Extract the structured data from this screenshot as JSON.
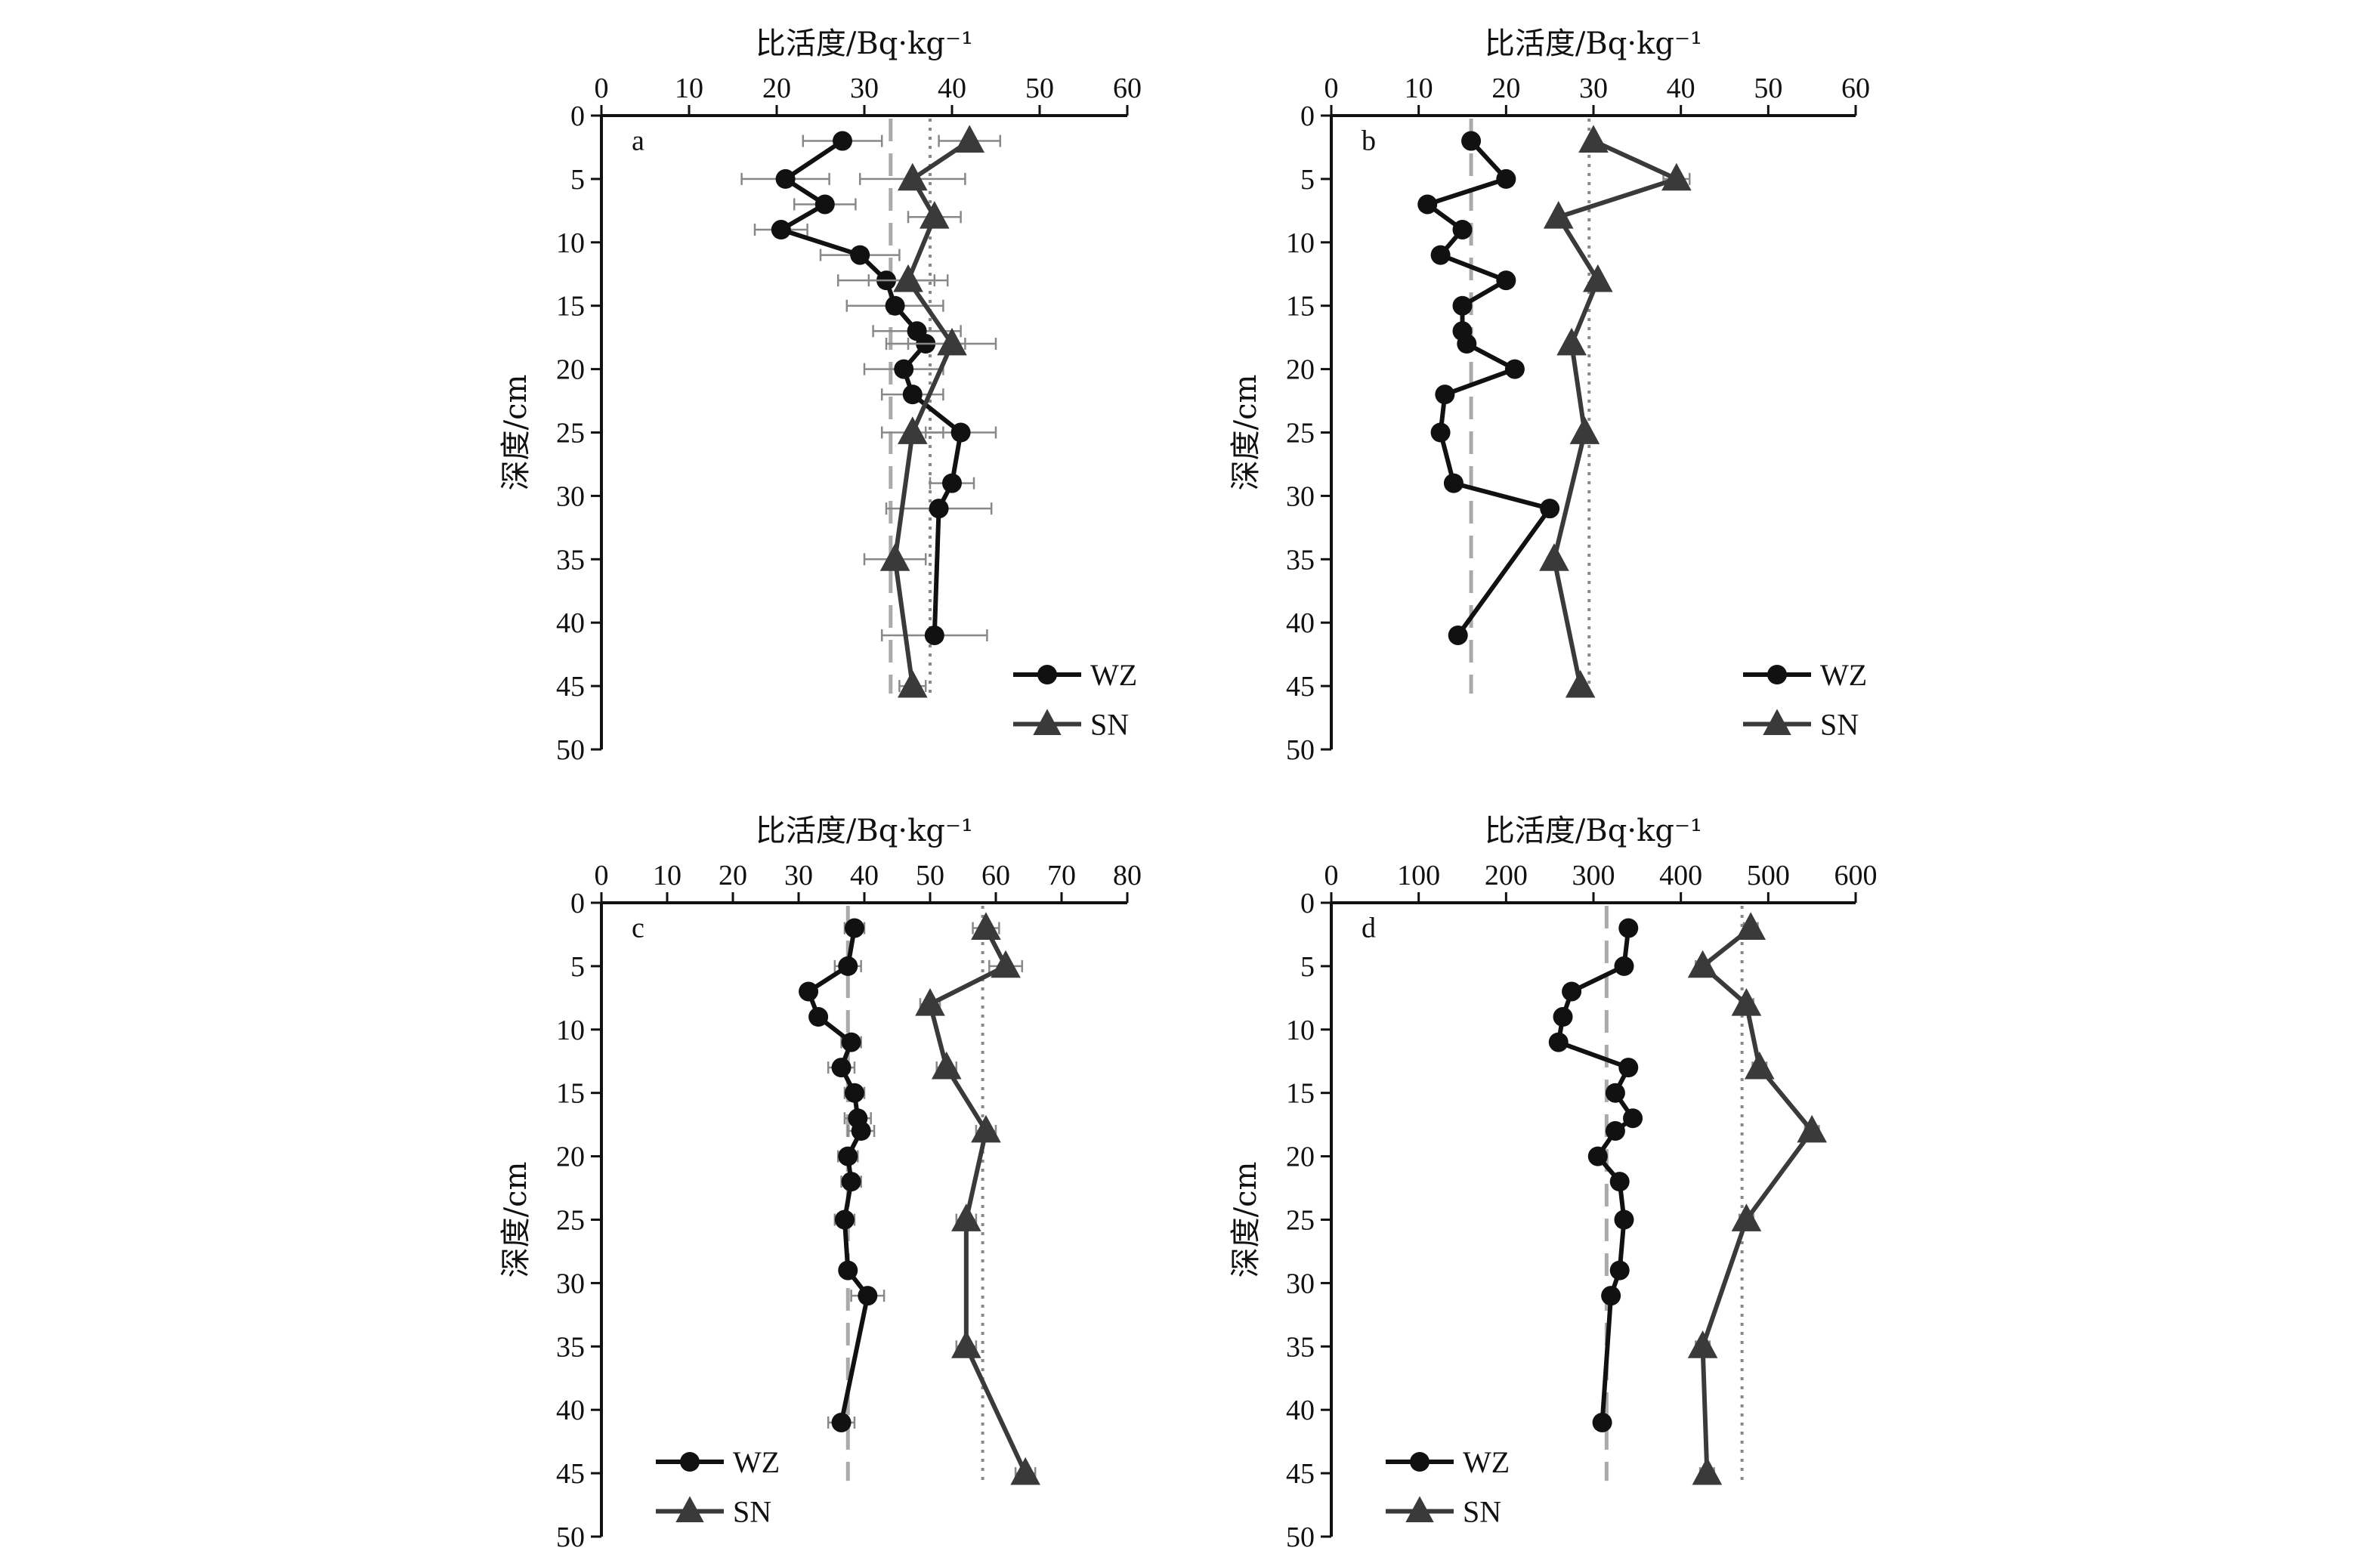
{
  "chart_data": [
    {
      "type": "line",
      "panel_label": "a",
      "xlabel": "比活度/Bq·kg⁻¹",
      "ylabel": "深度/cm",
      "xlim": [
        0,
        60
      ],
      "xticks": [
        0,
        10,
        20,
        30,
        40,
        50,
        60
      ],
      "ylim": [
        0,
        50
      ],
      "yticks": [
        0,
        5,
        10,
        15,
        20,
        25,
        30,
        35,
        40,
        45,
        50
      ],
      "grid": false,
      "legend_position": "bottom-right",
      "reference_lines": [
        {
          "series": "WZ",
          "value": 33,
          "style": "dashed"
        },
        {
          "series": "SN",
          "value": 37.5,
          "style": "dotted"
        }
      ],
      "series": [
        {
          "name": "WZ",
          "marker": "circle",
          "x": [
            27.5,
            21,
            25.5,
            20.5,
            29.5,
            32.5,
            33.5,
            36,
            37,
            34.5,
            35.5,
            41,
            40,
            38.5,
            38
          ],
          "y": [
            2,
            5,
            7,
            9,
            11,
            13,
            15,
            17,
            18,
            20,
            22,
            25,
            29,
            31,
            41
          ],
          "err": [
            4.5,
            5,
            3.5,
            3,
            4.5,
            5.5,
            5.5,
            5,
            4.5,
            4.5,
            3.5,
            4,
            2.5,
            6,
            6
          ]
        },
        {
          "name": "SN",
          "marker": "triangle",
          "x": [
            42,
            35.5,
            38,
            35,
            40,
            35.5,
            33.5,
            35.5
          ],
          "y": [
            2,
            5,
            8,
            13,
            18,
            25,
            35,
            45
          ],
          "err": [
            3.5,
            6,
            3,
            4.5,
            5,
            3.5,
            3.5,
            1.5
          ]
        }
      ]
    },
    {
      "type": "line",
      "panel_label": "b",
      "xlabel": "比活度/Bq·kg⁻¹",
      "ylabel": "深度/cm",
      "xlim": [
        0,
        60
      ],
      "xticks": [
        0,
        10,
        20,
        30,
        40,
        50,
        60
      ],
      "ylim": [
        0,
        50
      ],
      "yticks": [
        0,
        5,
        10,
        15,
        20,
        25,
        30,
        35,
        40,
        45,
        50
      ],
      "grid": false,
      "legend_position": "bottom-right",
      "reference_lines": [
        {
          "series": "WZ",
          "value": 16,
          "style": "dashed"
        },
        {
          "series": "SN",
          "value": 29.5,
          "style": "dotted"
        }
      ],
      "series": [
        {
          "name": "WZ",
          "marker": "circle",
          "x": [
            16,
            20,
            11,
            15,
            12.5,
            20,
            15,
            15,
            15.5,
            21,
            13,
            12.5,
            14,
            25,
            14.5
          ],
          "y": [
            2,
            5,
            7,
            9,
            11,
            13,
            15,
            17,
            18,
            20,
            22,
            25,
            29,
            31,
            41
          ],
          "err": [
            0.5,
            0.5,
            0.5,
            0.5,
            0.5,
            0.5,
            0.5,
            0.5,
            0.5,
            0.5,
            0.5,
            0.5,
            0.5,
            0.5,
            0.5
          ]
        },
        {
          "name": "SN",
          "marker": "triangle",
          "x": [
            30,
            39.5,
            26,
            30.5,
            27.5,
            29,
            25.5,
            28.5
          ],
          "y": [
            2,
            5,
            8,
            13,
            18,
            25,
            35,
            45
          ],
          "err": [
            0.5,
            1.5,
            0.5,
            0.5,
            0.5,
            0.5,
            0.5,
            0.5
          ]
        }
      ]
    },
    {
      "type": "line",
      "panel_label": "c",
      "xlabel": "比活度/Bq·kg⁻¹",
      "ylabel": "深度/cm",
      "xlim": [
        0,
        80
      ],
      "xticks": [
        0,
        10,
        20,
        30,
        40,
        50,
        60,
        70,
        80
      ],
      "ylim": [
        0,
        50
      ],
      "yticks": [
        0,
        5,
        10,
        15,
        20,
        25,
        30,
        35,
        40,
        45,
        50
      ],
      "grid": false,
      "legend_position": "bottom-left",
      "reference_lines": [
        {
          "series": "WZ",
          "value": 37.5,
          "style": "dashed"
        },
        {
          "series": "SN",
          "value": 58,
          "style": "dotted"
        }
      ],
      "series": [
        {
          "name": "WZ",
          "marker": "circle",
          "x": [
            38.5,
            37.5,
            31.5,
            33,
            38,
            36.5,
            38.5,
            39,
            39.5,
            37.5,
            38,
            37,
            37.5,
            40.5,
            36.5
          ],
          "y": [
            2,
            5,
            7,
            9,
            11,
            13,
            15,
            17,
            18,
            20,
            22,
            25,
            29,
            31,
            41
          ],
          "err": [
            1.5,
            2,
            1,
            1,
            1.5,
            2,
            1.5,
            2,
            2,
            1.5,
            1.5,
            1.5,
            1,
            2.5,
            2
          ]
        },
        {
          "name": "SN",
          "marker": "triangle",
          "x": [
            58.5,
            61.5,
            50,
            52.5,
            58.5,
            55.5,
            55.5,
            64.5
          ],
          "y": [
            2,
            5,
            8,
            13,
            18,
            25,
            35,
            45
          ],
          "err": [
            2,
            2.5,
            1.5,
            1.5,
            1.5,
            1.5,
            1.5,
            1.5
          ]
        }
      ]
    },
    {
      "type": "line",
      "panel_label": "d",
      "xlabel": "比活度/Bq·kg⁻¹",
      "ylabel": "深度/cm",
      "xlim": [
        0,
        600
      ],
      "xticks": [
        0,
        100,
        200,
        300,
        400,
        500,
        600
      ],
      "ylim": [
        0,
        50
      ],
      "yticks": [
        0,
        5,
        10,
        15,
        20,
        25,
        30,
        35,
        40,
        45,
        50
      ],
      "grid": false,
      "legend_position": "bottom-left",
      "reference_lines": [
        {
          "series": "WZ",
          "value": 315,
          "style": "dashed"
        },
        {
          "series": "SN",
          "value": 470,
          "style": "dotted"
        }
      ],
      "series": [
        {
          "name": "WZ",
          "marker": "circle",
          "x": [
            340,
            335,
            275,
            265,
            260,
            340,
            325,
            345,
            325,
            305,
            330,
            335,
            330,
            320,
            310
          ],
          "y": [
            2,
            5,
            7,
            9,
            11,
            13,
            15,
            17,
            18,
            20,
            22,
            25,
            29,
            31,
            41
          ],
          "err": [
            5,
            5,
            5,
            5,
            5,
            5,
            5,
            5,
            5,
            5,
            5,
            5,
            5,
            5,
            5
          ]
        },
        {
          "name": "SN",
          "marker": "triangle",
          "x": [
            480,
            425,
            475,
            490,
            550,
            475,
            425,
            430
          ],
          "y": [
            2,
            5,
            8,
            13,
            18,
            25,
            35,
            45
          ],
          "err": [
            8,
            8,
            8,
            8,
            8,
            8,
            8,
            8
          ]
        }
      ]
    }
  ],
  "legend": {
    "items": [
      "WZ",
      "SN"
    ]
  },
  "colors": {
    "wz": "#111111",
    "sn": "#3a3a3a",
    "wz_ref": "#aaaaaa",
    "sn_ref": "#888888",
    "error": "#888888"
  }
}
